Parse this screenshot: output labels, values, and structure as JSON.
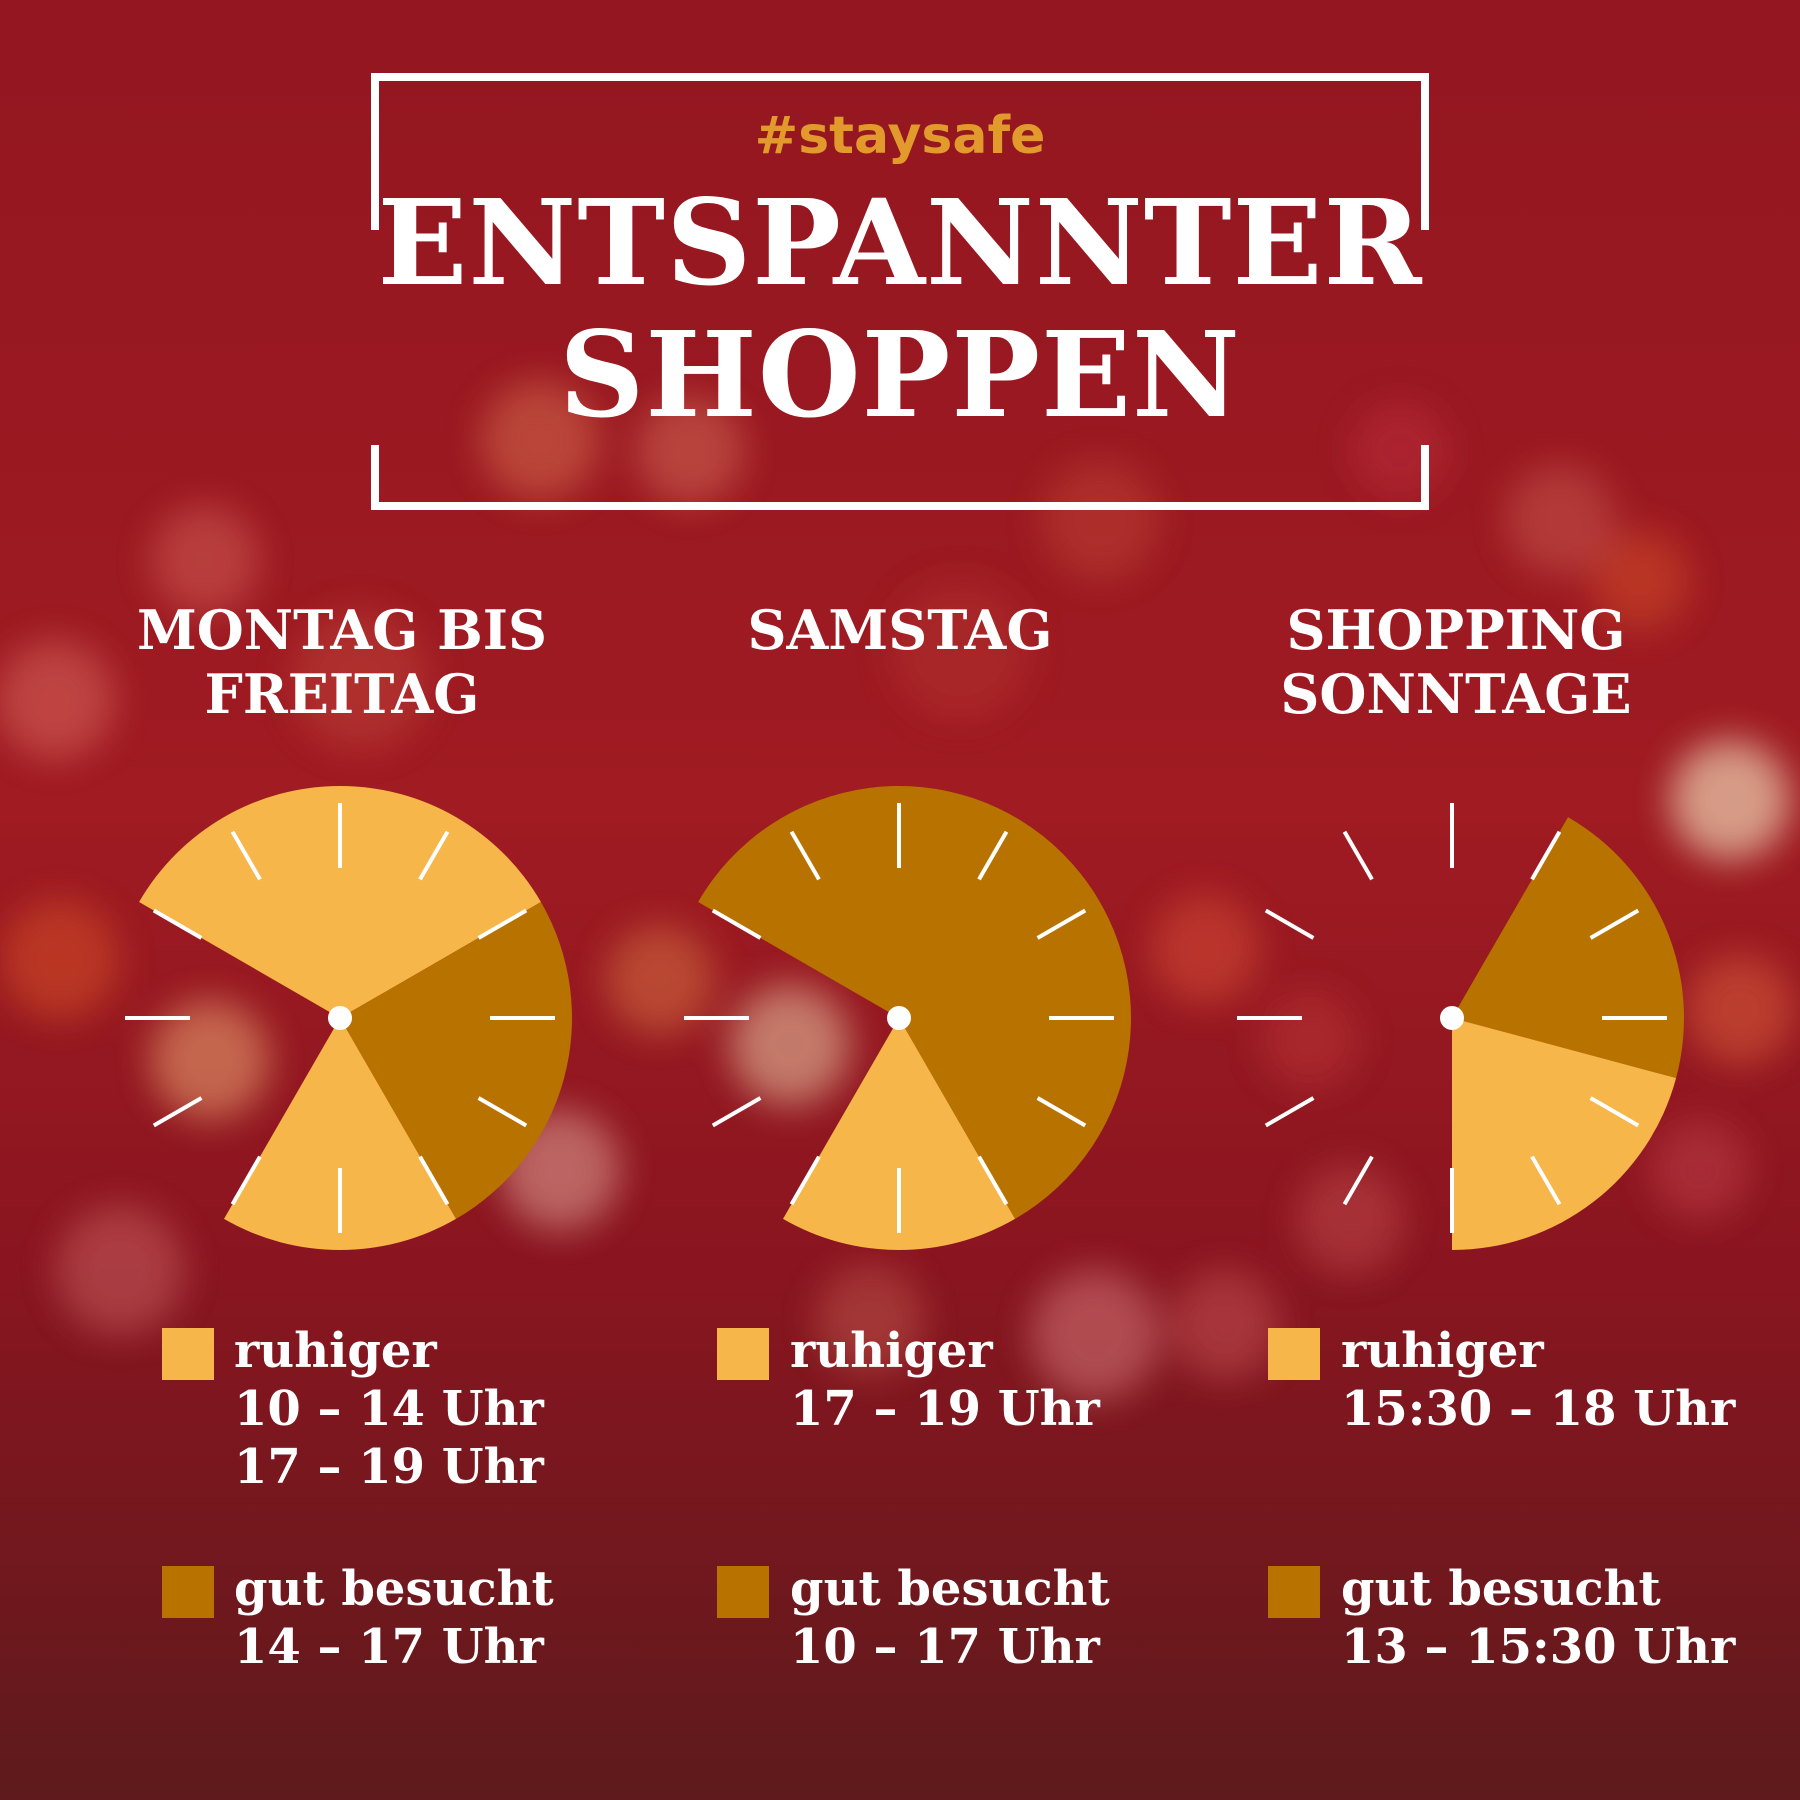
{
  "colors": {
    "background": "#8c1620",
    "ruhiger": "#f6b64a",
    "gut_besucht": "#b87200",
    "hashtag": "#e29a2c",
    "white": "#ffffff"
  },
  "header": {
    "hashtag": "#staysafe",
    "title_line1": "ENTSPANNTER",
    "title_line2": "SHOPPEN"
  },
  "chart_data": [
    {
      "type": "pie",
      "title": "MONTAG BIS FREITAG",
      "title_lines": [
        "MONTAG BIS",
        "FREITAG"
      ],
      "x_unit": "hour on 12h clock",
      "segments": [
        {
          "label": "ruhiger",
          "from": 10,
          "to": 14,
          "color": "#f6b64a"
        },
        {
          "label": "gut besucht",
          "from": 14,
          "to": 17,
          "color": "#b87200"
        },
        {
          "label": "ruhiger",
          "from": 17,
          "to": 19,
          "color": "#f6b64a"
        }
      ],
      "legend": [
        {
          "label": "ruhiger",
          "color": "#f6b64a",
          "times": [
            "10 – 14 Uhr",
            "17 – 19 Uhr"
          ]
        },
        {
          "label": "gut besucht",
          "color": "#b87200",
          "times": [
            "14 – 17 Uhr"
          ]
        }
      ]
    },
    {
      "type": "pie",
      "title": "SAMSTAG",
      "title_lines": [
        "SAMSTAG"
      ],
      "segments": [
        {
          "label": "gut besucht",
          "from": 10,
          "to": 17,
          "color": "#b87200"
        },
        {
          "label": "ruhiger",
          "from": 17,
          "to": 19,
          "color": "#f6b64a"
        }
      ],
      "legend": [
        {
          "label": "ruhiger",
          "color": "#f6b64a",
          "times": [
            "17 – 19 Uhr"
          ]
        },
        {
          "label": "gut besucht",
          "color": "#b87200",
          "times": [
            "10 – 17 Uhr"
          ]
        }
      ]
    },
    {
      "type": "pie",
      "title": "SHOPPING SONNTAGE",
      "title_lines": [
        "SHOPPING",
        "SONNTAGE"
      ],
      "segments": [
        {
          "label": "gut besucht",
          "from": 13,
          "to": 15.5,
          "color": "#b87200"
        },
        {
          "label": "ruhiger",
          "from": 15.5,
          "to": 18,
          "color": "#f6b64a"
        }
      ],
      "legend": [
        {
          "label": "ruhiger",
          "color": "#f6b64a",
          "times": [
            "15:30 – 18 Uhr"
          ]
        },
        {
          "label": "gut besucht",
          "color": "#b87200",
          "times": [
            "13 – 15:30 Uhr"
          ]
        }
      ]
    }
  ]
}
